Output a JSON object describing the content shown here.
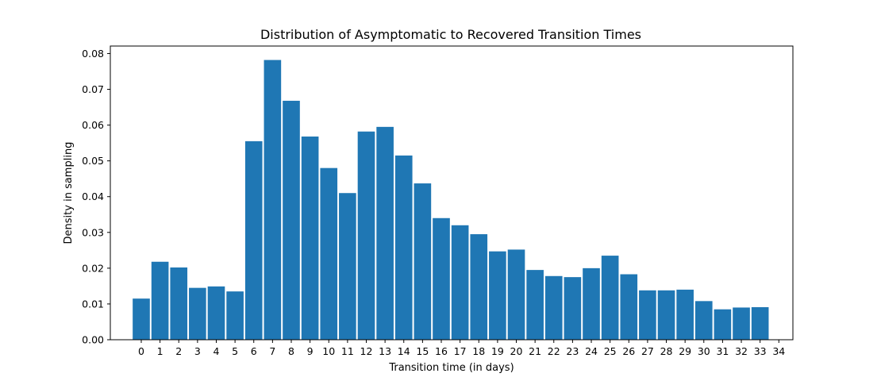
{
  "chart_data": {
    "type": "bar",
    "title": "Distribution of Asymptomatic to Recovered Transition Times",
    "xlabel": "Transition time (in days)",
    "ylabel": "Density in sampling",
    "categories": [
      0,
      1,
      2,
      3,
      4,
      5,
      6,
      7,
      8,
      9,
      10,
      11,
      12,
      13,
      14,
      15,
      16,
      17,
      18,
      19,
      20,
      21,
      22,
      23,
      24,
      25,
      26,
      27,
      28,
      29,
      30,
      31,
      32,
      33
    ],
    "values": [
      0.0115,
      0.0218,
      0.0202,
      0.0145,
      0.0149,
      0.0135,
      0.0555,
      0.0782,
      0.0668,
      0.0568,
      0.048,
      0.041,
      0.0582,
      0.0595,
      0.0515,
      0.0437,
      0.034,
      0.032,
      0.0295,
      0.0247,
      0.0252,
      0.0195,
      0.0178,
      0.0175,
      0.02,
      0.0235,
      0.0183,
      0.0138,
      0.0138,
      0.014,
      0.0108,
      0.0085,
      0.009,
      0.0091
    ],
    "xticks": [
      "0",
      "1",
      "2",
      "3",
      "4",
      "5",
      "6",
      "7",
      "8",
      "9",
      "10",
      "11",
      "12",
      "13",
      "14",
      "15",
      "16",
      "17",
      "18",
      "19",
      "20",
      "21",
      "22",
      "23",
      "24",
      "25",
      "26",
      "27",
      "28",
      "29",
      "30",
      "31",
      "32",
      "33",
      "34"
    ],
    "yticks": [
      "0.00",
      "0.01",
      "0.02",
      "0.03",
      "0.04",
      "0.05",
      "0.06",
      "0.07",
      "0.08"
    ],
    "xlim": [
      -1.65,
      34.75
    ],
    "ylim": [
      0,
      0.0821
    ],
    "bar_color": "#1f77b4",
    "grid": false
  }
}
